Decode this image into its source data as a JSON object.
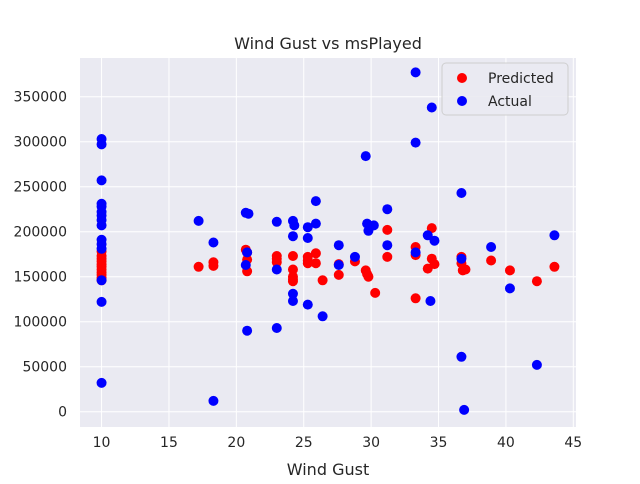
{
  "chart_data": {
    "type": "scatter",
    "title": "Wind Gust vs msPlayed",
    "xlabel": "Wind Gust",
    "ylabel": "msPlayed",
    "xlim": [
      8.4,
      45.2
    ],
    "ylim": [
      -17000,
      393000
    ],
    "xticks": [
      10,
      15,
      20,
      25,
      30,
      35,
      40,
      45
    ],
    "yticks": [
      0,
      50000,
      100000,
      150000,
      200000,
      250000,
      300000,
      350000
    ],
    "grid": true,
    "legend_position": "top-right",
    "series": [
      {
        "name": "Predicted",
        "color": "#ff0000",
        "points": [
          [
            10,
            178000
          ],
          [
            10,
            173000
          ],
          [
            10,
            170000
          ],
          [
            10,
            167000
          ],
          [
            10,
            164000
          ],
          [
            10,
            161000
          ],
          [
            10,
            158000
          ],
          [
            10,
            155000
          ],
          [
            10,
            152000
          ],
          [
            10,
            149000
          ],
          [
            10,
            146000
          ],
          [
            17.2,
            161000
          ],
          [
            18.3,
            166000
          ],
          [
            18.3,
            162000
          ],
          [
            20.7,
            180000
          ],
          [
            20.8,
            177000
          ],
          [
            20.8,
            169000
          ],
          [
            20.8,
            156000
          ],
          [
            23,
            173000
          ],
          [
            23,
            170000
          ],
          [
            23,
            166000
          ],
          [
            24.2,
            173000
          ],
          [
            24.2,
            158000
          ],
          [
            24.2,
            150000
          ],
          [
            24.2,
            147000
          ],
          [
            24.2,
            145000
          ],
          [
            25.3,
            172000
          ],
          [
            25.3,
            168000
          ],
          [
            25.3,
            165000
          ],
          [
            25.9,
            176000
          ],
          [
            25.9,
            165000
          ],
          [
            26.4,
            146000
          ],
          [
            27.6,
            164000
          ],
          [
            27.6,
            152000
          ],
          [
            28.8,
            167000
          ],
          [
            29.6,
            157000
          ],
          [
            29.7,
            153000
          ],
          [
            29.8,
            150000
          ],
          [
            30.3,
            132000
          ],
          [
            31.2,
            202000
          ],
          [
            31.2,
            172000
          ],
          [
            33.3,
            183000
          ],
          [
            33.3,
            174000
          ],
          [
            33.3,
            126000
          ],
          [
            34.2,
            159000
          ],
          [
            34.5,
            204000
          ],
          [
            34.5,
            170000
          ],
          [
            34.7,
            164000
          ],
          [
            36.7,
            172000
          ],
          [
            36.7,
            165000
          ],
          [
            36.8,
            157000
          ],
          [
            37,
            158000
          ],
          [
            38.9,
            168000
          ],
          [
            40.3,
            157000
          ],
          [
            42.3,
            145000
          ],
          [
            43.6,
            161000
          ]
        ]
      },
      {
        "name": "Actual",
        "color": "#0000ff",
        "points": [
          [
            10,
            303000
          ],
          [
            10,
            297000
          ],
          [
            10,
            257000
          ],
          [
            10,
            231000
          ],
          [
            10,
            228000
          ],
          [
            10,
            222000
          ],
          [
            10,
            218000
          ],
          [
            10,
            213000
          ],
          [
            10,
            207000
          ],
          [
            10,
            191000
          ],
          [
            10,
            186000
          ],
          [
            10,
            181000
          ],
          [
            10,
            146000
          ],
          [
            10,
            122000
          ],
          [
            10,
            32000
          ],
          [
            17.2,
            212000
          ],
          [
            18.3,
            188000
          ],
          [
            18.3,
            12000
          ],
          [
            20.7,
            221000
          ],
          [
            20.9,
            220000
          ],
          [
            20.8,
            177000
          ],
          [
            20.7,
            163000
          ],
          [
            20.8,
            90000
          ],
          [
            23,
            211000
          ],
          [
            23,
            158000
          ],
          [
            23,
            93000
          ],
          [
            24.2,
            212000
          ],
          [
            24.3,
            207000
          ],
          [
            24.2,
            195000
          ],
          [
            24.2,
            131000
          ],
          [
            24.2,
            123000
          ],
          [
            25.3,
            205000
          ],
          [
            25.3,
            193000
          ],
          [
            25.3,
            119000
          ],
          [
            25.9,
            234000
          ],
          [
            25.9,
            209000
          ],
          [
            26.4,
            106000
          ],
          [
            27.6,
            185000
          ],
          [
            27.6,
            163000
          ],
          [
            28.8,
            172000
          ],
          [
            29.6,
            284000
          ],
          [
            29.7,
            209000
          ],
          [
            29.8,
            201000
          ],
          [
            30.2,
            207000
          ],
          [
            31.2,
            225000
          ],
          [
            31.2,
            185000
          ],
          [
            33.3,
            377000
          ],
          [
            33.3,
            299000
          ],
          [
            33.3,
            177000
          ],
          [
            34.2,
            196000
          ],
          [
            34.5,
            338000
          ],
          [
            34.4,
            123000
          ],
          [
            34.7,
            190000
          ],
          [
            36.7,
            243000
          ],
          [
            36.7,
            170000
          ],
          [
            36.7,
            61000
          ],
          [
            36.9,
            2000
          ],
          [
            38.9,
            183000
          ],
          [
            40.3,
            137000
          ],
          [
            42.3,
            52000
          ],
          [
            43.6,
            196000
          ]
        ]
      }
    ]
  }
}
